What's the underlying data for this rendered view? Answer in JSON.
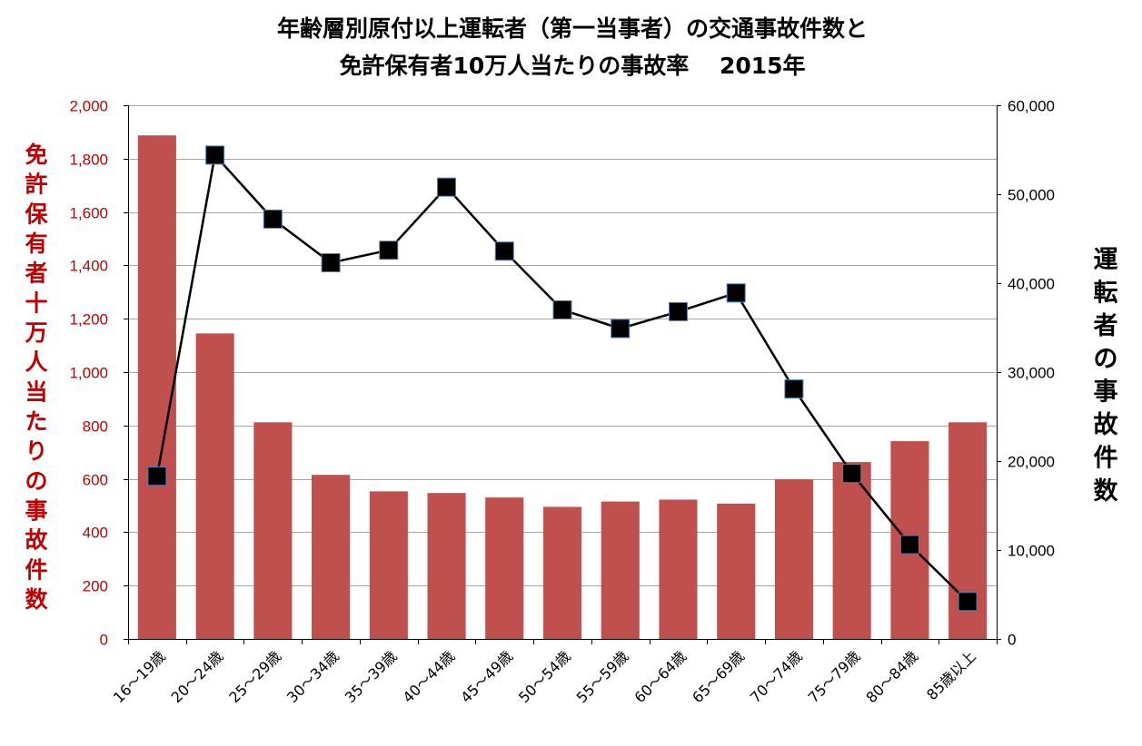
{
  "chart_data": {
    "type": "bar",
    "title_lines": [
      "年齢層別原付以上運転者（第一当事者）の交通事故件数と",
      "免許保有者10万人当たりの事故率　 2015年"
    ],
    "categories": [
      "16～19歳",
      "20～24歳",
      "25～29歳",
      "30～34歳",
      "35～39歳",
      "40～44歳",
      "45～49歳",
      "50～54歳",
      "55～59歳",
      "60～64歳",
      "65～69歳",
      "70～74歳",
      "75～79歳",
      "80～84歳",
      "85歳以上"
    ],
    "series": [
      {
        "type": "bar",
        "axis": "left",
        "values": [
          1887,
          1145,
          812,
          615,
          553,
          547,
          530,
          495,
          515,
          522,
          507,
          598,
          663,
          741,
          812
        ]
      },
      {
        "type": "line",
        "axis": "right",
        "values": [
          18300,
          54400,
          47200,
          42300,
          43700,
          50800,
          43600,
          37000,
          34900,
          36800,
          38900,
          28100,
          18600,
          10600,
          4200
        ]
      }
    ],
    "ylabel_left": "免許保有者十万人当たりの事故件数",
    "ylabel_right": "運転者の事故件数",
    "y_left": {
      "range": [
        0,
        2000
      ],
      "ticks": [
        "0",
        "200",
        "400",
        "600",
        "800",
        "1,000",
        "1,200",
        "1,400",
        "1,600",
        "1,800",
        "2,000"
      ]
    },
    "y_right": {
      "range": [
        0,
        60000
      ],
      "ticks": [
        "0",
        "10,000",
        "20,000",
        "30,000",
        "40,000",
        "50,000",
        "60,000"
      ]
    },
    "grid": true,
    "legend": "none",
    "colors": {
      "bar": "#c0504d",
      "line": "#000000",
      "marker": "#000000",
      "marker_outline": "#4f81bd",
      "left_axis_text": "#c00000",
      "grid": "#a6a6a6"
    }
  }
}
